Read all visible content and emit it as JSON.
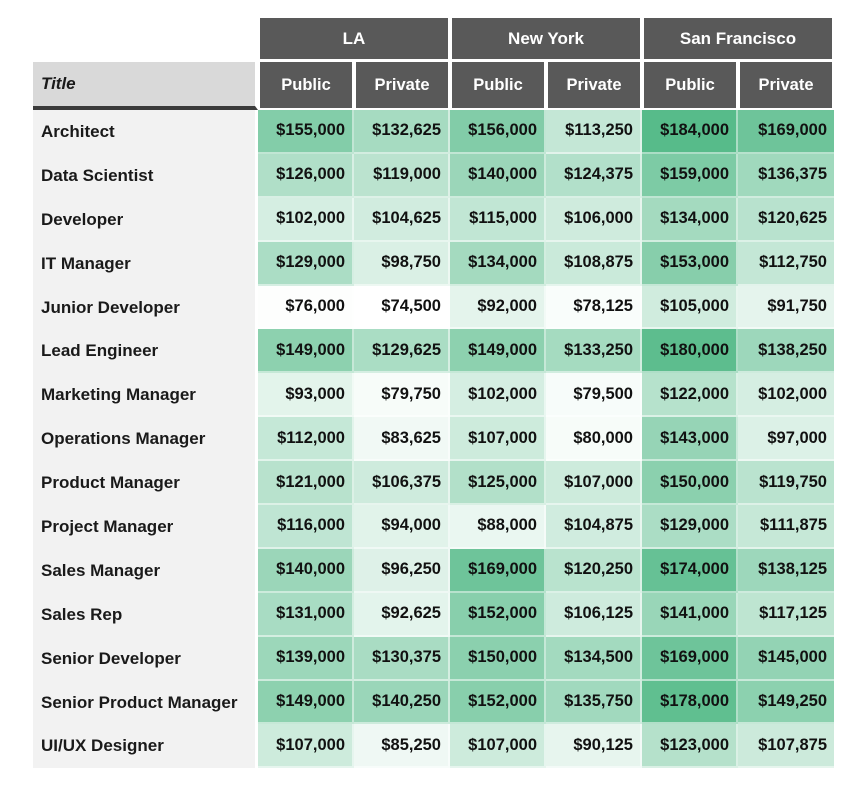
{
  "table": {
    "corner_label": "Title",
    "city_groups": [
      "LA",
      "New York",
      "San Francisco"
    ],
    "sub_headers": [
      "Public",
      "Private"
    ]
  },
  "chart_data": {
    "type": "heatmap",
    "row_label_header": "Title",
    "rows": [
      "Architect",
      "Data Scientist",
      "Developer",
      "IT Manager",
      "Junior Developer",
      "Lead Engineer",
      "Marketing Manager",
      "Operations Manager",
      "Product Manager",
      "Project Manager",
      "Sales Manager",
      "Sales Rep",
      "Senior Developer",
      "Senior Product Manager",
      "UI/UX Designer"
    ],
    "columns": [
      "LA Public",
      "LA Private",
      "New York Public",
      "New York Private",
      "San Francisco Public",
      "San Francisco Private"
    ],
    "values": [
      [
        155000,
        132625,
        156000,
        113250,
        184000,
        169000
      ],
      [
        126000,
        119000,
        140000,
        124375,
        159000,
        136375
      ],
      [
        102000,
        104625,
        115000,
        106000,
        134000,
        120625
      ],
      [
        129000,
        98750,
        134000,
        108875,
        153000,
        112750
      ],
      [
        76000,
        74500,
        92000,
        78125,
        105000,
        91750
      ],
      [
        149000,
        129625,
        149000,
        133250,
        180000,
        138250
      ],
      [
        93000,
        79750,
        102000,
        79500,
        122000,
        102000
      ],
      [
        112000,
        83625,
        107000,
        80000,
        143000,
        97000
      ],
      [
        121000,
        106375,
        125000,
        107000,
        150000,
        119750
      ],
      [
        116000,
        94000,
        88000,
        104875,
        129000,
        111875
      ],
      [
        140000,
        96250,
        169000,
        120250,
        174000,
        138125
      ],
      [
        131000,
        92625,
        152000,
        106125,
        141000,
        117125
      ],
      [
        139000,
        130375,
        150000,
        134500,
        169000,
        145000
      ],
      [
        149000,
        140250,
        152000,
        135750,
        178000,
        149250
      ],
      [
        107000,
        85250,
        107000,
        90125,
        123000,
        107875
      ]
    ],
    "value_format": "$#,##0",
    "color_scale": {
      "min": 74500,
      "max": 184000,
      "min_color": "#FFFFFF",
      "max_color": "#57BB8A"
    },
    "legend_position": "none",
    "grid": false
  },
  "colors": {
    "page-bg": "#FFFFFF",
    "header-bg": "#595959",
    "header-text": "#FFFFFF",
    "title-header-bg": "#D9D9D9",
    "title-underline": "#3B3B3B",
    "row-label-bg": "#F2F2F2",
    "label-text": "#1A1A1A",
    "value-text": "#111111"
  }
}
